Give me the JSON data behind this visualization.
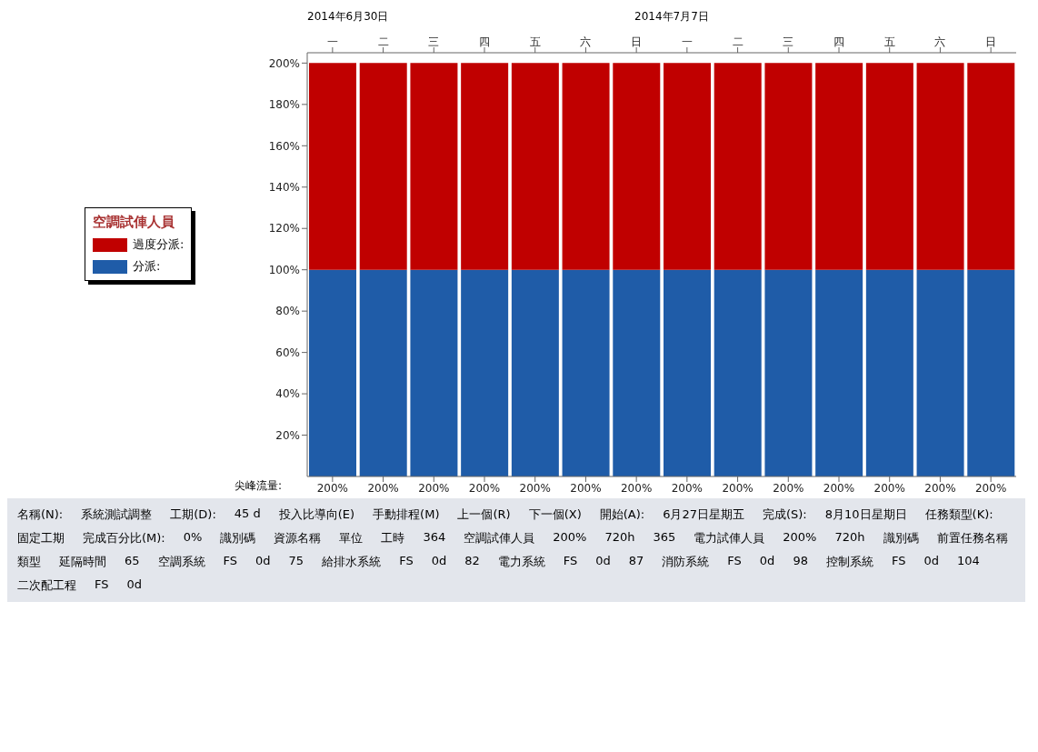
{
  "chart_data": [
    {
      "type": "bar",
      "stacked": true,
      "legend": "left",
      "legend_title": "空調試俥人員",
      "categories": [
        "一",
        "二",
        "三",
        "四",
        "五",
        "六",
        "日",
        "一",
        "二",
        "三",
        "四",
        "五",
        "六",
        "日"
      ],
      "series": [
        {
          "name": "分派:",
          "color": "#1f5ca8",
          "values": [
            100,
            100,
            100,
            100,
            100,
            100,
            100,
            100,
            100,
            100,
            100,
            100,
            100,
            100
          ]
        },
        {
          "name": "過度分派:",
          "color": "#c00000",
          "values": [
            100,
            100,
            100,
            100,
            100,
            100,
            100,
            100,
            100,
            100,
            100,
            100,
            100,
            100
          ]
        }
      ],
      "totals": [
        "200%",
        "200%",
        "200%",
        "200%",
        "200%",
        "200%",
        "200%",
        "200%",
        "200%",
        "200%",
        "200%",
        "200%",
        "200%",
        "200%"
      ],
      "ylim": [
        0,
        205
      ],
      "yticks": [
        {
          "value": 20,
          "label": "20%"
        },
        {
          "value": 40,
          "label": "40%"
        },
        {
          "value": 60,
          "label": "60%"
        },
        {
          "value": 80,
          "label": "80%"
        },
        {
          "value": 100,
          "label": "100%"
        },
        {
          "value": 120,
          "label": "120%"
        },
        {
          "value": 140,
          "label": "140%"
        },
        {
          "value": 160,
          "label": "160%"
        },
        {
          "value": 180,
          "label": "180%"
        },
        {
          "value": 200,
          "label": "200%"
        }
      ],
      "annotations": [
        "2014年6月30日",
        "2014年7月7日",
        "尖峰流量:"
      ]
    },
    {
      "type": "other",
      "annotations": [
        "名稱(N):",
        "系統測試調整",
        "工期(D):",
        "45 d",
        "投入比導向(E)",
        "手動排程(M)",
        "上一個(R)",
        "下一個(X)",
        "開始(A):",
        "6月27日星期五",
        "完成(S):",
        "8月10日星期日",
        "任務類型(K):",
        "固定工期",
        "完成百分比(M):",
        "0%",
        "識別碼",
        "資源名稱",
        "單位",
        "工時",
        "364",
        "空調試俥人員",
        "200%",
        "720h",
        "365",
        "電力試俥人員",
        "200%",
        "720h",
        "識別碼",
        "前置任務名稱",
        "類型",
        "延隔時間",
        "65",
        "空調系統",
        "FS",
        "0d",
        "75",
        "給排水系統",
        "FS",
        "0d",
        "82",
        "電力系統",
        "FS",
        "0d",
        "87",
        "消防系統",
        "FS",
        "0d",
        "98",
        "控制系統",
        "FS",
        "0d",
        "104",
        "二次配工程",
        "FS",
        "0d"
      ]
    }
  ]
}
